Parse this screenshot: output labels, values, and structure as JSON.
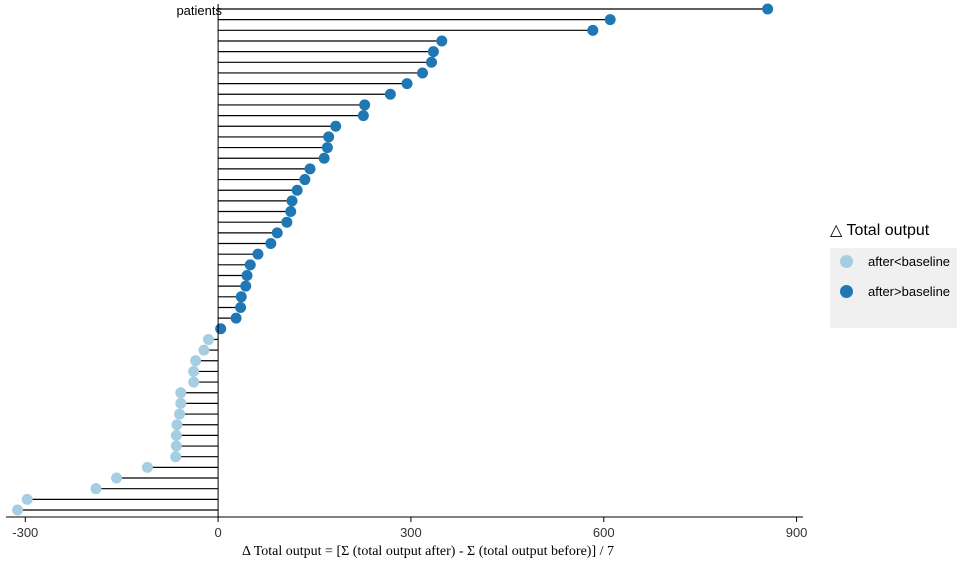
{
  "chart_data": {
    "type": "lollipop",
    "ylabel": "patients",
    "xlabel": "Δ Total output = [Σ (total output after) - Σ (total output before)] / 7",
    "xlim": [
      -330,
      910
    ],
    "xticks": [
      -300,
      0,
      300,
      600,
      900
    ],
    "orientation": "horizontal",
    "legend": {
      "title": "△ Total output",
      "position": "right",
      "entries": [
        {
          "label": "after<baseline",
          "color": "#a6cee3"
        },
        {
          "label": "after>baseline",
          "color": "#1f78b4"
        }
      ]
    },
    "values": [
      855,
      610,
      583,
      348,
      335,
      332,
      318,
      294,
      268,
      228,
      226,
      183,
      172,
      170,
      165,
      143,
      135,
      123,
      115,
      113,
      107,
      92,
      82,
      62,
      50,
      45,
      43,
      36,
      35,
      28,
      4,
      -15,
      -22,
      -35,
      -38,
      -38,
      -58,
      -58,
      -60,
      -64,
      -65,
      -65,
      -66,
      -110,
      -158,
      -190,
      -297,
      -312
    ]
  }
}
